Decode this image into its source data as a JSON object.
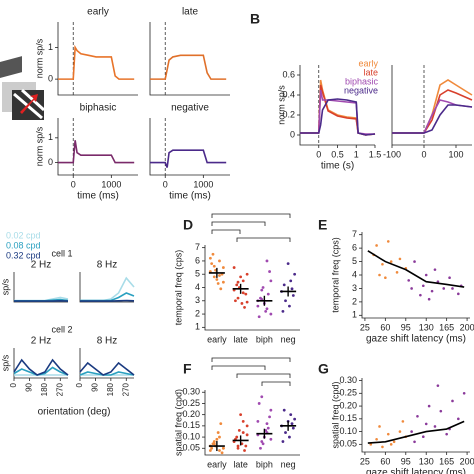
{
  "panels": [
    "B",
    "D",
    "E",
    "F",
    "G"
  ],
  "chart_data": [
    {
      "type": "line",
      "title": "early",
      "ylabel": "norm sp/s",
      "x": [
        -400,
        -200,
        0,
        50,
        100,
        200,
        400,
        600,
        800,
        1000,
        1100,
        1200,
        1400,
        1600
      ],
      "xlim": [
        -400,
        1700
      ],
      "ylim": [
        -0.5,
        1.8
      ],
      "yticks": [
        0,
        1
      ],
      "series": [
        {
          "color": "#e8742a",
          "values": [
            0,
            0,
            0,
            1.0,
            0.9,
            0.8,
            0.75,
            0.7,
            0.7,
            0.7,
            0.1,
            0,
            0,
            0
          ]
        }
      ]
    },
    {
      "type": "line",
      "title": "late",
      "x": [
        -400,
        -200,
        0,
        50,
        100,
        200,
        400,
        600,
        800,
        1000,
        1100,
        1200,
        1400,
        1600
      ],
      "xlim": [
        -400,
        1700
      ],
      "ylim": [
        -0.5,
        1.8
      ],
      "series": [
        {
          "color": "#e0702a",
          "values": [
            0,
            0,
            0,
            0.3,
            0.6,
            0.7,
            0.75,
            0.75,
            0.75,
            0.75,
            0.2,
            0,
            0,
            0
          ]
        }
      ]
    },
    {
      "type": "line",
      "title": "biphasic",
      "ylabel": "norm sp/s",
      "xlabel": "time (ms)",
      "x": [
        -400,
        -200,
        0,
        50,
        100,
        200,
        400,
        600,
        800,
        1000,
        1100,
        1200,
        1400,
        1600
      ],
      "xlim": [
        -400,
        1700
      ],
      "ylim": [
        -0.5,
        1.8
      ],
      "yticks": [
        0,
        1
      ],
      "xticks": [
        0,
        1000
      ],
      "series": [
        {
          "color": "#7a2a6a",
          "values": [
            0,
            0,
            0,
            0.9,
            0.4,
            0.3,
            0.3,
            0.3,
            0.3,
            0.3,
            0,
            0,
            0,
            0
          ]
        }
      ]
    },
    {
      "type": "line",
      "title": "negative",
      "xlabel": "time (ms)",
      "x": [
        -400,
        -200,
        0,
        50,
        100,
        200,
        400,
        600,
        800,
        1000,
        1100,
        1200,
        1400,
        1600
      ],
      "xlim": [
        -400,
        1700
      ],
      "ylim": [
        -0.5,
        1.8
      ],
      "xticks": [
        0,
        1000
      ],
      "series": [
        {
          "color": "#4b2a8a",
          "values": [
            0,
            0,
            0,
            -0.2,
            0.4,
            0.5,
            0.5,
            0.5,
            0.5,
            0.5,
            0,
            0,
            0,
            0
          ]
        }
      ]
    },
    {
      "type": "line",
      "ylabel": "norm sp/s",
      "xlabel": "time (s)",
      "x": [
        -0.5,
        -0.25,
        0,
        0.05,
        0.1,
        0.25,
        0.5,
        0.75,
        1,
        1.05,
        1.25,
        1.5
      ],
      "xlim": [
        -0.5,
        1.5
      ],
      "xticks": [
        0,
        0.5,
        1,
        1.5
      ],
      "ylim": [
        -0.1,
        0.7
      ],
      "yticks": [
        0,
        0.2,
        0.4,
        0.6
      ],
      "series": [
        {
          "name": "early",
          "color": "#f08a3c",
          "values": [
            0.02,
            0.02,
            0.02,
            0.55,
            0.45,
            0.25,
            0.2,
            0.18,
            0.17,
            0.02,
            0,
            0.01
          ]
        },
        {
          "name": "late",
          "color": "#d8402c",
          "values": [
            0.02,
            0.02,
            0.02,
            0.5,
            0.43,
            0.24,
            0.19,
            0.17,
            0.16,
            0.02,
            0,
            0.01
          ]
        },
        {
          "name": "biphasic",
          "color": "#a04ab0",
          "values": [
            0.02,
            0.02,
            0.02,
            0.45,
            0.35,
            0.35,
            0.34,
            0.33,
            0.32,
            0.02,
            0.01,
            0.01
          ]
        },
        {
          "name": "negative",
          "color": "#4b2a8a",
          "values": [
            0.02,
            0.02,
            0.02,
            0.1,
            0.25,
            0.35,
            0.36,
            0.35,
            0.33,
            0.02,
            0,
            0.01
          ]
        }
      ]
    },
    {
      "type": "line",
      "x": [
        -100,
        -50,
        0,
        25,
        50,
        75,
        100,
        150
      ],
      "xlim": [
        -100,
        150
      ],
      "xticks": [
        -100,
        0,
        100
      ],
      "ylim": [
        -0.1,
        0.7
      ],
      "series": [
        {
          "color": "#f08a3c",
          "values": [
            0.02,
            0.02,
            0.02,
            0.2,
            0.5,
            0.55,
            0.5,
            0.4
          ]
        },
        {
          "color": "#d8402c",
          "values": [
            0.02,
            0.02,
            0.02,
            0.15,
            0.4,
            0.45,
            0.42,
            0.35
          ]
        },
        {
          "color": "#a04ab0",
          "values": [
            0.02,
            0.02,
            0.02,
            0.2,
            0.35,
            0.33,
            0.3,
            0.28
          ]
        },
        {
          "color": "#4b2a8a",
          "values": [
            0.02,
            0.02,
            0.02,
            0.05,
            0.2,
            0.3,
            0.3,
            0.28
          ]
        }
      ]
    },
    {
      "type": "line",
      "title": "2 Hz",
      "annotation": "cell 1",
      "ylabel": "sp/s",
      "x": [
        0,
        45,
        90,
        135,
        180,
        225,
        270,
        315
      ],
      "xlim": [
        0,
        315
      ],
      "ylim": [
        0,
        1
      ],
      "series": [
        {
          "name": "0.02 cpd",
          "color": "#a8dce8",
          "values": [
            0.05,
            0.05,
            0.05,
            0.05,
            0.05,
            0.1,
            0.15,
            0.1
          ]
        },
        {
          "name": "0.08 cpd",
          "color": "#2aa0c0",
          "values": [
            0.04,
            0.04,
            0.04,
            0.04,
            0.04,
            0.06,
            0.08,
            0.05
          ]
        },
        {
          "name": "0.32 cpd",
          "color": "#1a3a80",
          "values": [
            0.03,
            0.03,
            0.03,
            0.03,
            0.03,
            0.03,
            0.04,
            0.03
          ]
        }
      ]
    },
    {
      "type": "line",
      "title": "8 Hz",
      "x": [
        0,
        45,
        90,
        135,
        180,
        225,
        270,
        315
      ],
      "xlim": [
        0,
        315
      ],
      "ylim": [
        0,
        1
      ],
      "series": [
        {
          "color": "#a8dce8",
          "values": [
            0.05,
            0.05,
            0.05,
            0.05,
            0.1,
            0.3,
            0.8,
            0.5
          ]
        },
        {
          "color": "#2aa0c0",
          "values": [
            0.05,
            0.05,
            0.05,
            0.05,
            0.05,
            0.15,
            0.3,
            0.2
          ]
        },
        {
          "color": "#1a3a80",
          "values": [
            0.03,
            0.03,
            0.03,
            0.03,
            0.03,
            0.04,
            0.05,
            0.04
          ]
        }
      ]
    },
    {
      "type": "line",
      "title": "2 Hz",
      "annotation": "cell 2",
      "ylabel": "sp/s",
      "xlabel": "orientation (deg)",
      "x": [
        0,
        45,
        90,
        135,
        180,
        225,
        270,
        315
      ],
      "xlim": [
        0,
        315
      ],
      "xticks": [
        0,
        90,
        180,
        270
      ],
      "ylim": [
        0,
        1
      ],
      "series": [
        {
          "color": "#a8dce8",
          "values": [
            0.1,
            0.1,
            0.1,
            0.1,
            0.1,
            0.1,
            0.1,
            0.1
          ]
        },
        {
          "color": "#2aa0c0",
          "values": [
            0.15,
            0.3,
            0.2,
            0.1,
            0.15,
            0.35,
            0.2,
            0.1
          ]
        },
        {
          "color": "#1a3a80",
          "values": [
            0.2,
            0.6,
            0.3,
            0.1,
            0.2,
            0.6,
            0.3,
            0.1
          ]
        }
      ]
    },
    {
      "type": "line",
      "title": "8 Hz",
      "x": [
        0,
        45,
        90,
        135,
        180,
        225,
        270,
        315
      ],
      "xlim": [
        0,
        315
      ],
      "xticks": [
        0,
        90,
        180,
        270
      ],
      "ylim": [
        0,
        1
      ],
      "series": [
        {
          "color": "#a8dce8",
          "values": [
            0.1,
            0.1,
            0.1,
            0.1,
            0.1,
            0.1,
            0.1,
            0.1
          ]
        },
        {
          "color": "#2aa0c0",
          "values": [
            0.1,
            0.2,
            0.15,
            0.1,
            0.1,
            0.2,
            0.15,
            0.1
          ]
        },
        {
          "color": "#1a3a80",
          "values": [
            0.2,
            0.5,
            0.3,
            0.1,
            0.2,
            0.5,
            0.3,
            0.1
          ]
        }
      ]
    },
    {
      "type": "strip",
      "ylabel": "temporal freq (cps)",
      "categories": [
        "early",
        "late",
        "biph",
        "neg"
      ],
      "colors": [
        "#f08a3c",
        "#d8402c",
        "#a04ab0",
        "#4b2a8a"
      ],
      "ylim": [
        0.8,
        7.2
      ],
      "yticks": [
        1,
        2,
        3,
        4,
        5,
        6,
        7
      ],
      "values": [
        5.1,
        3.9,
        3.0,
        3.7
      ],
      "points": [
        [
          5.2,
          6.0,
          4.8,
          5.5,
          4.3,
          6.5,
          5.0,
          4.6,
          5.8,
          3.9,
          5.3,
          6.2,
          4.9,
          5.6,
          4.4
        ],
        [
          3.8,
          4.5,
          3.2,
          5.0,
          2.8,
          4.2,
          3.5,
          4.8,
          3.0,
          2.5,
          4.0,
          5.5,
          3.6,
          4.4,
          2.9
        ],
        [
          3.0,
          2.4,
          3.8,
          4.5,
          2.2,
          3.2,
          5.2,
          2.8,
          1.8,
          3.5,
          4.0,
          2.6,
          6.0,
          3.1,
          2.0
        ],
        [
          3.7,
          4.5,
          3.0,
          5.0,
          2.6,
          4.2,
          3.4,
          5.8,
          2.2,
          3.9
        ]
      ]
    },
    {
      "type": "strip",
      "ylabel": "spatial freq (cpd)",
      "categories": [
        "early",
        "late",
        "biph",
        "neg"
      ],
      "colors": [
        "#f08a3c",
        "#d8402c",
        "#a04ab0",
        "#4b2a8a"
      ],
      "ylim": [
        0.02,
        0.31
      ],
      "yticks": [
        0.05,
        {
          "value": 0.1,
          "label": "0.10"
        },
        0.15,
        {
          "value": 0.2,
          "label": "0.20"
        },
        0.25,
        {
          "value": 0.3,
          "label": "0.30"
        }
      ],
      "values": [
        0.06,
        0.085,
        0.115,
        0.15
      ],
      "points": [
        [
          0.06,
          0.04,
          0.08,
          0.05,
          0.12,
          0.07,
          0.03,
          0.09,
          0.05,
          0.16,
          0.06,
          0.04,
          0.1,
          0.07,
          0.05
        ],
        [
          0.08,
          0.12,
          0.05,
          0.15,
          0.07,
          0.1,
          0.06,
          0.2,
          0.09,
          0.04,
          0.13,
          0.08,
          0.17,
          0.06,
          0.11
        ],
        [
          0.11,
          0.16,
          0.08,
          0.22,
          0.13,
          0.05,
          0.19,
          0.1,
          0.25,
          0.14,
          0.07,
          0.17,
          0.12,
          0.28,
          0.09
        ],
        [
          0.15,
          0.2,
          0.12,
          0.18,
          0.1,
          0.22,
          0.14,
          0.17,
          0.08,
          0.16
        ]
      ]
    },
    {
      "type": "scatter",
      "ylabel": "temporal freq (cps)",
      "xlabel": "gaze shift latency (ms)",
      "xlim": [
        20,
        205
      ],
      "xticks": [
        25,
        60,
        95,
        130,
        165,
        200
      ],
      "ylim": [
        0.8,
        7.2
      ],
      "yticks": [
        1,
        2,
        3,
        4,
        5,
        6,
        7
      ],
      "series": [
        {
          "color": "#f08a3c",
          "x": [
            40,
            55,
            45,
            70,
            80,
            60,
            95,
            65,
            85,
            50
          ],
          "values": [
            5.5,
            4.8,
            6.2,
            5.0,
            4.2,
            3.8,
            4.5,
            6.5,
            5.2,
            4.0
          ]
        },
        {
          "color": "#8a3a9a",
          "x": [
            100,
            110,
            125,
            130,
            140,
            150,
            160,
            170,
            185,
            190,
            120,
            145,
            175,
            105,
            135
          ],
          "values": [
            3.6,
            5.0,
            3.2,
            4.0,
            2.8,
            3.5,
            3.0,
            3.8,
            2.6,
            3.2,
            2.5,
            4.4,
            3.0,
            3.0,
            2.2
          ]
        }
      ],
      "trend": {
        "x": [
          30,
          60,
          95,
          130,
          165,
          195
        ],
        "values": [
          5.8,
          5.0,
          4.4,
          3.5,
          3.3,
          3.1
        ]
      }
    },
    {
      "type": "scatter",
      "ylabel": "spatial freq (cpd)",
      "xlabel": "gaze shift latency (ms)",
      "xlim": [
        20,
        205
      ],
      "xticks": [
        25,
        60,
        95,
        130,
        165,
        200
      ],
      "ylim": [
        0.02,
        0.31
      ],
      "yticks": [
        0.05,
        {
          "value": 0.1,
          "label": "0.10"
        },
        0.15,
        {
          "value": 0.2,
          "label": "0.20"
        },
        0.25,
        {
          "value": 0.3,
          "label": "0.30"
        }
      ],
      "series": [
        {
          "color": "#f08a3c",
          "x": [
            35,
            45,
            55,
            65,
            75,
            85,
            95,
            50,
            70,
            90
          ],
          "values": [
            0.05,
            0.07,
            0.04,
            0.09,
            0.06,
            0.1,
            0.08,
            0.12,
            0.05,
            0.14
          ]
        },
        {
          "color": "#8a3a9a",
          "x": [
            105,
            115,
            125,
            135,
            145,
            155,
            165,
            175,
            185,
            195,
            110,
            130,
            150,
            170
          ],
          "values": [
            0.1,
            0.16,
            0.08,
            0.2,
            0.12,
            0.18,
            0.09,
            0.22,
            0.15,
            0.25,
            0.06,
            0.13,
            0.28,
            0.11
          ]
        }
      ],
      "trend": {
        "x": [
          30,
          60,
          95,
          130,
          165,
          195
        ],
        "values": [
          0.055,
          0.06,
          0.08,
          0.1,
          0.11,
          0.14
        ]
      }
    }
  ]
}
